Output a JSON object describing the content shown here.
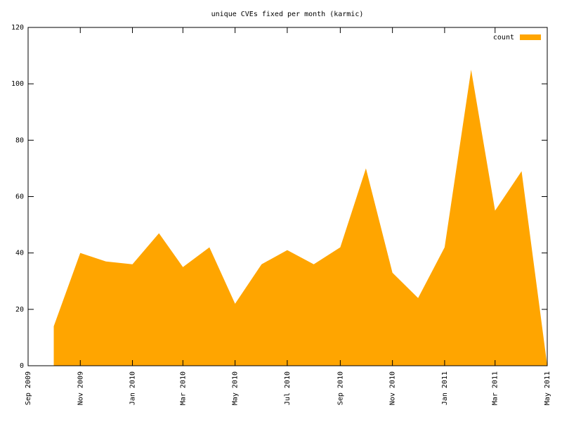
{
  "chart_data": {
    "type": "area",
    "title": "unique CVEs fixed per month (karmic)",
    "x": [
      "2009-10",
      "2009-11",
      "2009-12",
      "2010-01",
      "2010-02",
      "2010-03",
      "2010-04",
      "2010-05",
      "2010-06",
      "2010-07",
      "2010-08",
      "2010-09",
      "2010-10",
      "2010-11",
      "2010-12",
      "2011-01",
      "2011-02",
      "2011-03",
      "2011-04",
      "2011-05"
    ],
    "series": [
      {
        "name": "count",
        "color": "#ffa500",
        "values": [
          14,
          40,
          37,
          36,
          47,
          35,
          42,
          22,
          36,
          41,
          36,
          42,
          70,
          33,
          24,
          42,
          105,
          55,
          69,
          0
        ]
      }
    ],
    "xlim": [
      "2009-09",
      "2011-05"
    ],
    "xticks": [
      {
        "value": "2009-09",
        "label": "Sep 2009"
      },
      {
        "value": "2009-11",
        "label": "Nov 2009"
      },
      {
        "value": "2010-01",
        "label": "Jan 2010"
      },
      {
        "value": "2010-03",
        "label": "Mar 2010"
      },
      {
        "value": "2010-05",
        "label": "May 2010"
      },
      {
        "value": "2010-07",
        "label": "Jul 2010"
      },
      {
        "value": "2010-09",
        "label": "Sep 2010"
      },
      {
        "value": "2010-11",
        "label": "Nov 2010"
      },
      {
        "value": "2011-01",
        "label": "Jan 2011"
      },
      {
        "value": "2011-03",
        "label": "Mar 2011"
      },
      {
        "value": "2011-05",
        "label": "May 2011"
      }
    ],
    "ylim": [
      0,
      120
    ],
    "yticks": [
      0,
      20,
      40,
      60,
      80,
      100,
      120
    ],
    "legend": "top-right"
  }
}
